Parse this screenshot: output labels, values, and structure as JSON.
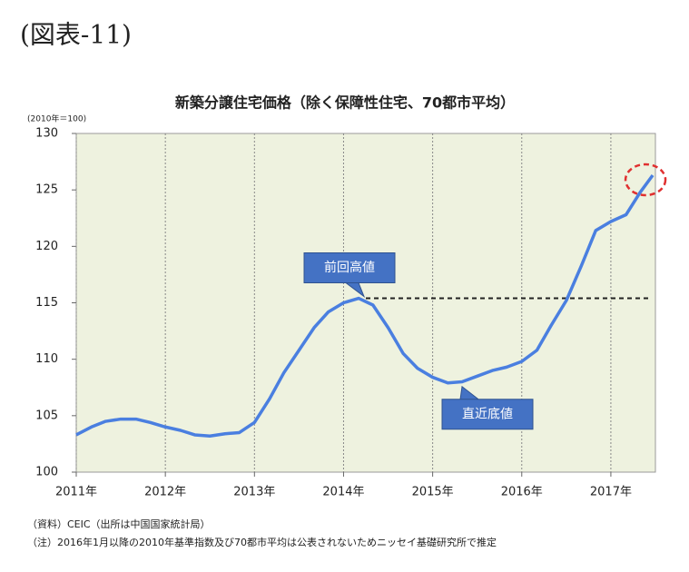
{
  "header": "(図表-11)",
  "chart_data": {
    "type": "line",
    "title": "新築分譲住宅価格（除く保障性住宅、70都市平均）",
    "unit_label": "(2010年＝100)",
    "x": [
      2011.0,
      2011.17,
      2011.33,
      2011.5,
      2011.67,
      2011.83,
      2012.0,
      2012.17,
      2012.33,
      2012.5,
      2012.67,
      2012.83,
      2013.0,
      2013.17,
      2013.33,
      2013.5,
      2013.67,
      2013.83,
      2014.0,
      2014.17,
      2014.33,
      2014.5,
      2014.67,
      2014.83,
      2015.0,
      2015.17,
      2015.33,
      2015.5,
      2015.67,
      2015.83,
      2016.0,
      2016.17,
      2016.33,
      2016.5,
      2016.67,
      2016.83,
      2017.0,
      2017.17,
      2017.33,
      2017.47
    ],
    "series": [
      {
        "color": "#4a7fe0",
        "values": [
          103.3,
          104.0,
          104.5,
          104.7,
          104.7,
          104.4,
          104.0,
          103.7,
          103.3,
          103.2,
          103.4,
          103.5,
          104.4,
          106.5,
          108.8,
          110.8,
          112.8,
          114.2,
          115.0,
          115.4,
          114.8,
          112.8,
          110.5,
          109.2,
          108.4,
          107.9,
          108.0,
          108.5,
          109.0,
          109.3,
          109.8,
          110.8,
          113.0,
          115.2,
          118.3,
          121.4,
          122.2,
          122.8,
          124.8,
          126.3
        ]
      }
    ],
    "xlim": [
      2011,
      2017.5
    ],
    "xticks": [
      {
        "value": 2011,
        "label": "2011年"
      },
      {
        "value": 2012,
        "label": "2012年"
      },
      {
        "value": 2013,
        "label": "2013年"
      },
      {
        "value": 2014,
        "label": "2014年"
      },
      {
        "value": 2015,
        "label": "2015年"
      },
      {
        "value": 2016,
        "label": "2016年"
      },
      {
        "value": 2017,
        "label": "2017年"
      }
    ],
    "ylim": [
      100,
      130
    ],
    "yticks": [
      100,
      105,
      110,
      115,
      120,
      125,
      130
    ],
    "grid": "x",
    "reference_line": {
      "value": 115.4,
      "x": [
        2014.25,
        2017.45
      ]
    },
    "annotations": [
      {
        "text": "前回高値",
        "x": 2014.25,
        "y": 115.4
      },
      {
        "text": "直近底値",
        "x": 2015.33,
        "y": 107.9
      }
    ]
  },
  "notes": [
    "（資料）CEIC（出所は中国国家統計局）",
    "（注）2016年1月以降の2010年基準指数及び70都市平均は公表されないためニッセイ基礎研究所で推定"
  ]
}
